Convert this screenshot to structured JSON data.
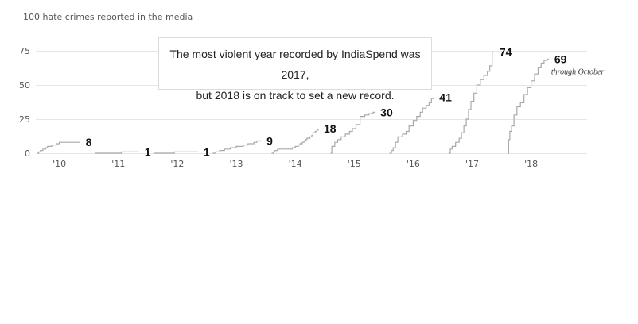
{
  "chart_data": {
    "type": "line",
    "title": "",
    "ylabel": "100 hate crimes reported in the media",
    "ylim": [
      0,
      100
    ],
    "yticks": [
      0,
      25,
      50,
      75
    ],
    "xlim": [
      2009.6,
      2018.95
    ],
    "x_tick_labels": [
      {
        "x": 2010,
        "label": "'10"
      },
      {
        "x": 2011,
        "label": "'11"
      },
      {
        "x": 2012,
        "label": "'12"
      },
      {
        "x": 2013,
        "label": "'13"
      },
      {
        "x": 2014,
        "label": "'14"
      },
      {
        "x": 2015,
        "label": "'15"
      },
      {
        "x": 2016,
        "label": "'16"
      },
      {
        "x": 2017,
        "label": "'17"
      },
      {
        "x": 2018,
        "label": "'18"
      }
    ],
    "grid": true,
    "series": [
      {
        "year": 2010,
        "total": "8",
        "points": [
          [
            2009.62,
            0
          ],
          [
            2009.65,
            1
          ],
          [
            2009.68,
            2
          ],
          [
            2009.72,
            3
          ],
          [
            2009.77,
            4
          ],
          [
            2009.8,
            5
          ],
          [
            2009.87,
            6
          ],
          [
            2009.95,
            7
          ],
          [
            2010.0,
            8
          ],
          [
            2010.35,
            8
          ]
        ]
      },
      {
        "year": 2011,
        "total": "1",
        "points": [
          [
            2010.6,
            0
          ],
          [
            2011.05,
            1
          ],
          [
            2011.35,
            1
          ]
        ]
      },
      {
        "year": 2012,
        "total": "1",
        "points": [
          [
            2011.6,
            0
          ],
          [
            2011.95,
            1
          ],
          [
            2012.35,
            1
          ]
        ]
      },
      {
        "year": 2013,
        "total": "9",
        "points": [
          [
            2012.6,
            0
          ],
          [
            2012.65,
            1
          ],
          [
            2012.72,
            2
          ],
          [
            2012.8,
            3
          ],
          [
            2012.9,
            4
          ],
          [
            2013.0,
            5
          ],
          [
            2013.12,
            6
          ],
          [
            2013.2,
            7
          ],
          [
            2013.3,
            8
          ],
          [
            2013.35,
            9
          ],
          [
            2013.42,
            9
          ]
        ]
      },
      {
        "year": 2014,
        "total": "18",
        "points": [
          [
            2013.6,
            0
          ],
          [
            2013.63,
            1
          ],
          [
            2013.65,
            2
          ],
          [
            2013.7,
            3
          ],
          [
            2013.95,
            4
          ],
          [
            2014.0,
            5
          ],
          [
            2014.05,
            6
          ],
          [
            2014.08,
            7
          ],
          [
            2014.12,
            8
          ],
          [
            2014.15,
            9
          ],
          [
            2014.18,
            10
          ],
          [
            2014.2,
            11
          ],
          [
            2014.25,
            12
          ],
          [
            2014.28,
            13
          ],
          [
            2014.3,
            15
          ],
          [
            2014.34,
            16
          ],
          [
            2014.37,
            17
          ],
          [
            2014.39,
            18
          ]
        ]
      },
      {
        "year": 2015,
        "total": "30",
        "points": [
          [
            2014.6,
            0
          ],
          [
            2014.62,
            5
          ],
          [
            2014.67,
            8
          ],
          [
            2014.72,
            10
          ],
          [
            2014.78,
            12
          ],
          [
            2014.85,
            14
          ],
          [
            2014.92,
            16
          ],
          [
            2014.97,
            18
          ],
          [
            2015.03,
            21
          ],
          [
            2015.1,
            27
          ],
          [
            2015.18,
            28
          ],
          [
            2015.25,
            29
          ],
          [
            2015.32,
            30
          ],
          [
            2015.35,
            30
          ]
        ]
      },
      {
        "year": 2016,
        "total": "41",
        "points": [
          [
            2015.6,
            0
          ],
          [
            2015.63,
            2
          ],
          [
            2015.66,
            4
          ],
          [
            2015.7,
            8
          ],
          [
            2015.74,
            12
          ],
          [
            2015.82,
            14
          ],
          [
            2015.88,
            16
          ],
          [
            2015.93,
            20
          ],
          [
            2016.0,
            24
          ],
          [
            2016.06,
            27
          ],
          [
            2016.12,
            30
          ],
          [
            2016.16,
            33
          ],
          [
            2016.22,
            35
          ],
          [
            2016.27,
            37
          ],
          [
            2016.31,
            40
          ],
          [
            2016.35,
            41
          ]
        ]
      },
      {
        "year": 2017,
        "total": "74",
        "points": [
          [
            2016.6,
            0
          ],
          [
            2016.63,
            3
          ],
          [
            2016.66,
            5
          ],
          [
            2016.72,
            8
          ],
          [
            2016.78,
            11
          ],
          [
            2016.82,
            15
          ],
          [
            2016.86,
            20
          ],
          [
            2016.9,
            25
          ],
          [
            2016.94,
            32
          ],
          [
            2016.98,
            38
          ],
          [
            2017.03,
            44
          ],
          [
            2017.08,
            50
          ],
          [
            2017.14,
            54
          ],
          [
            2017.2,
            57
          ],
          [
            2017.26,
            60
          ],
          [
            2017.3,
            64
          ],
          [
            2017.34,
            74
          ],
          [
            2017.37,
            74
          ]
        ]
      },
      {
        "year": 2018,
        "total": "69",
        "points": [
          [
            2017.6,
            0
          ],
          [
            2017.62,
            10
          ],
          [
            2017.64,
            16
          ],
          [
            2017.67,
            20
          ],
          [
            2017.71,
            28
          ],
          [
            2017.76,
            34
          ],
          [
            2017.82,
            37
          ],
          [
            2017.88,
            43
          ],
          [
            2017.94,
            48
          ],
          [
            2018.0,
            53
          ],
          [
            2018.06,
            58
          ],
          [
            2018.12,
            63
          ],
          [
            2018.17,
            66
          ],
          [
            2018.22,
            68
          ],
          [
            2018.27,
            69
          ],
          [
            2018.3,
            69
          ]
        ]
      }
    ],
    "annotations": {
      "callout_line1": "The most violent year recorded by IndiaSpend was 2017,",
      "callout_line2": "but 2018 is on track to set a new record.",
      "note_2018": "through October"
    }
  }
}
